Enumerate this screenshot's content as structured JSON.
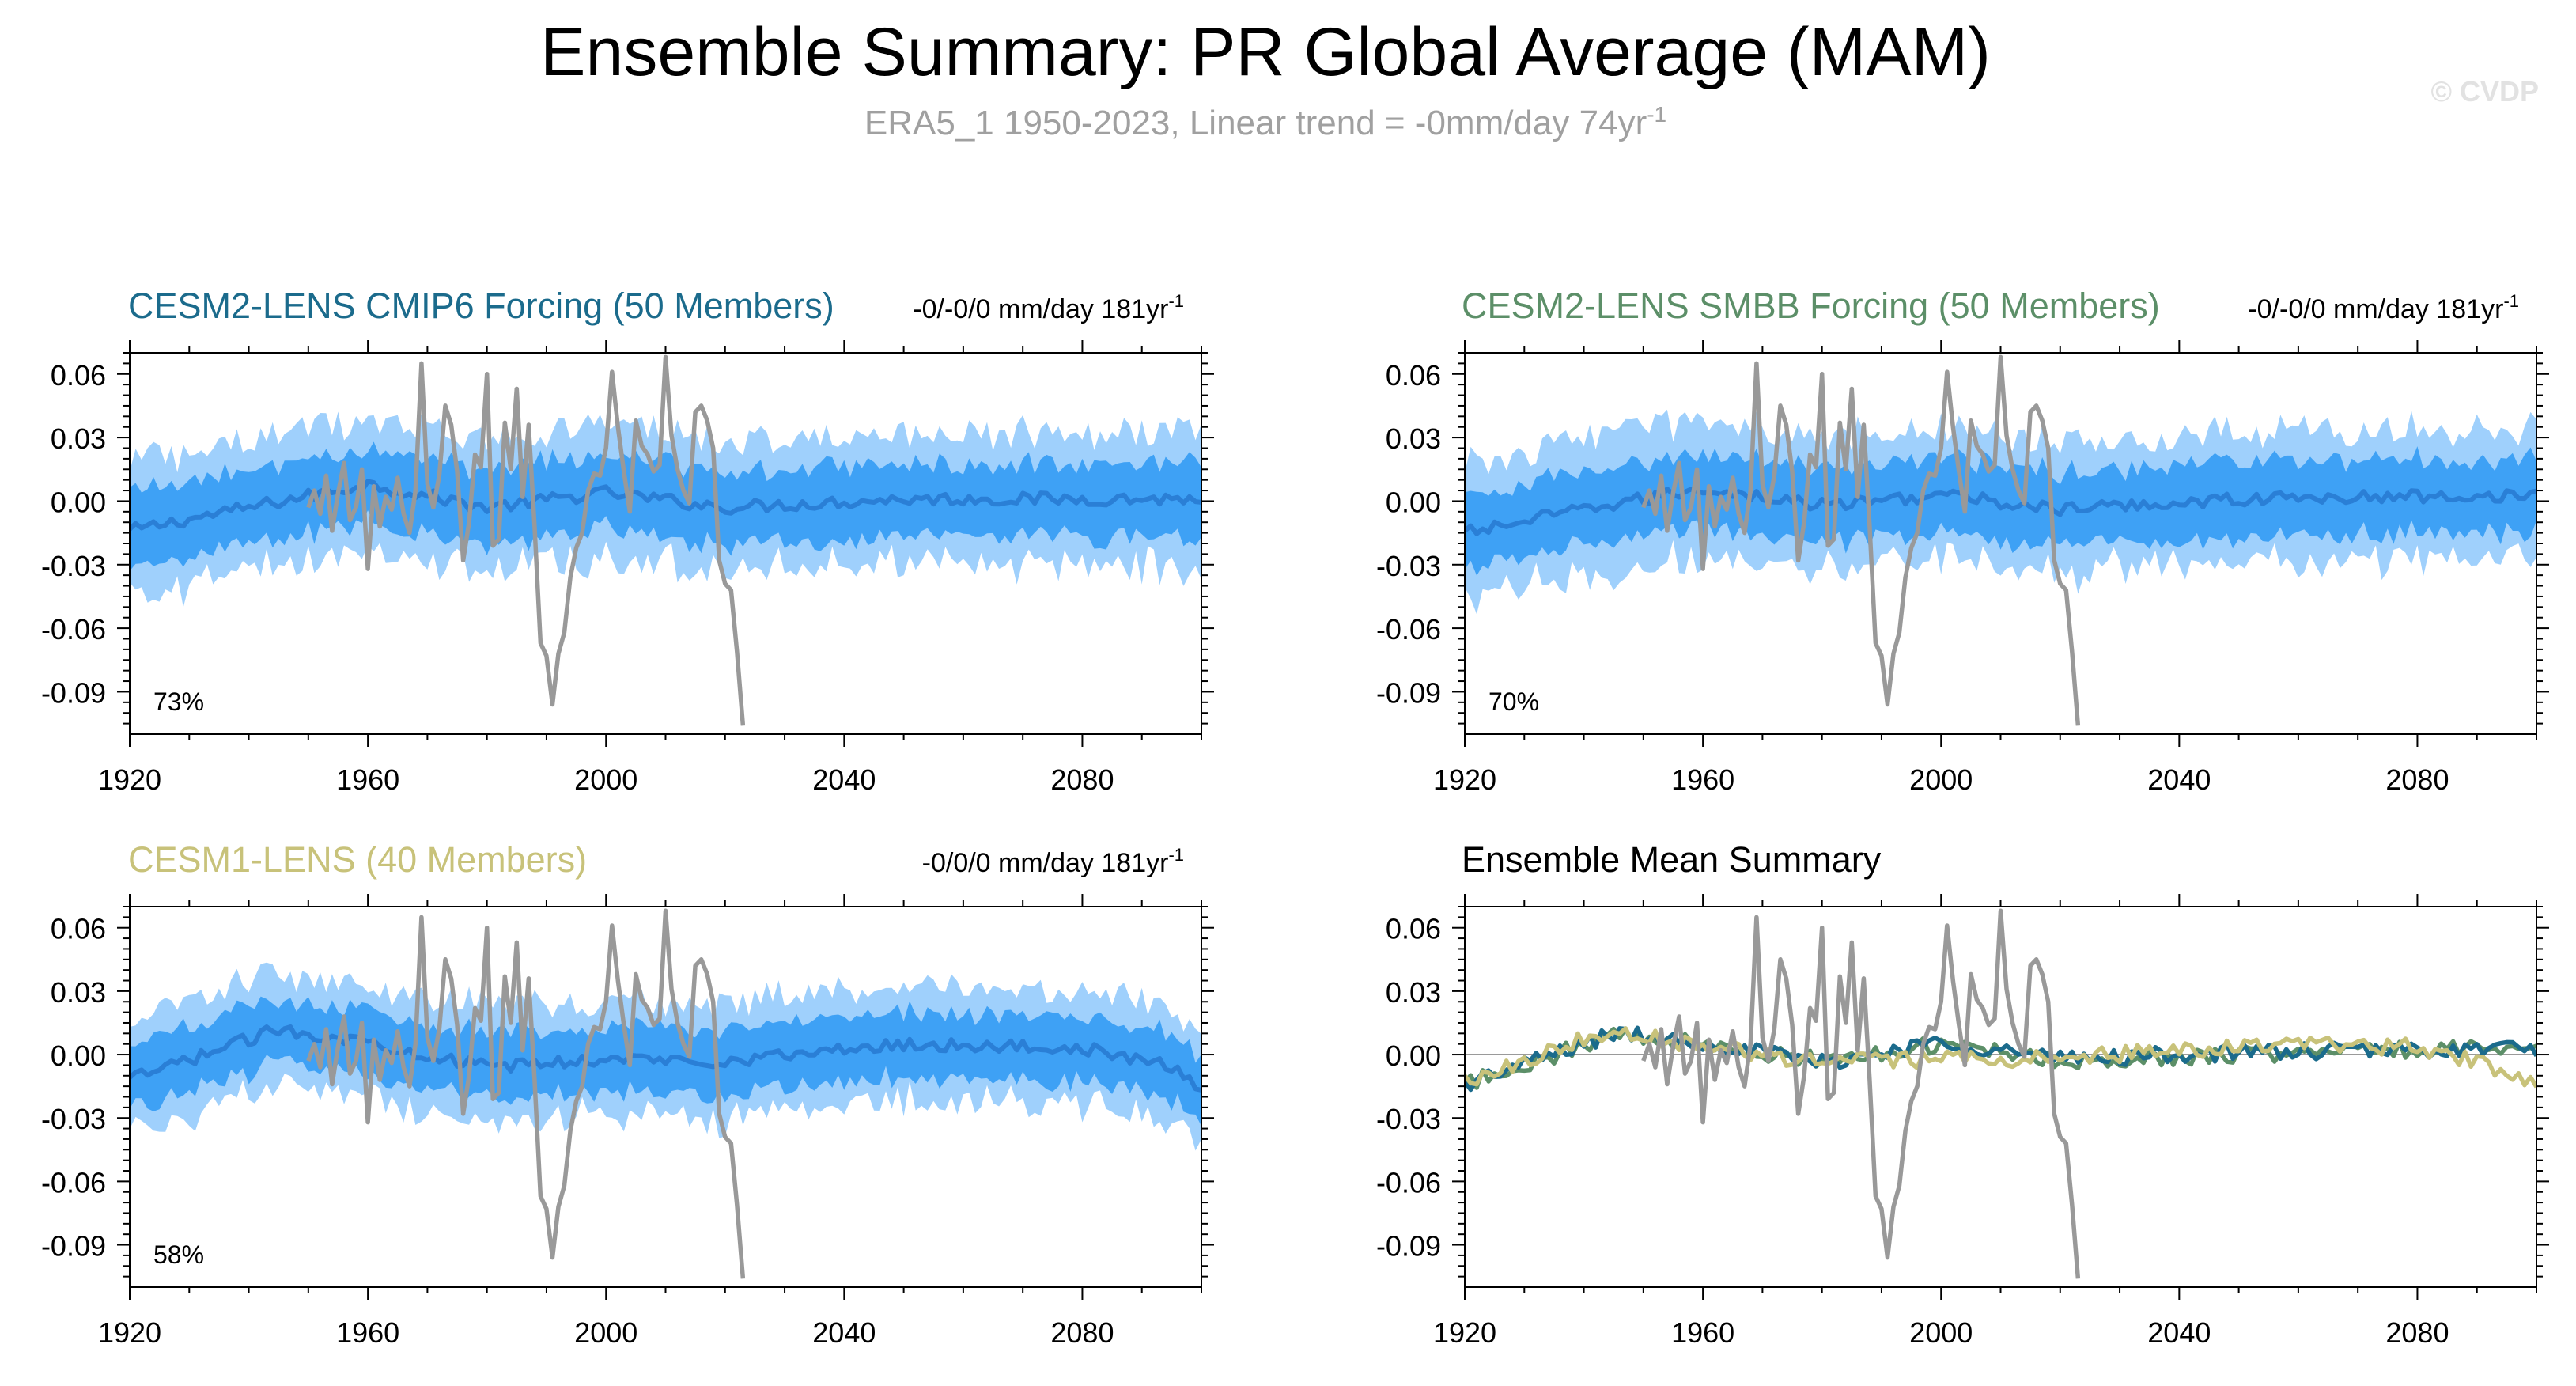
{
  "header": {
    "title": "Ensemble Summary: PR Global Average (MAM)",
    "subtitle": "ERA5_1 1950-2023, Linear trend = -0mm/day 74yr",
    "subtitle_sup": "-1",
    "watermark": "© CVDP"
  },
  "colors": {
    "band_outer": "#9fd0fc",
    "band_inner": "#3ea1f5",
    "ensemble_mean": "#2a7fd6",
    "observations": "#999999",
    "cesm2_cmip6": "#1b6b8c",
    "cesm2_smbb": "#5c8f68",
    "cesm1": "#c8c27a"
  },
  "chart_data": [
    {
      "type": "area",
      "title": "CESM2-LENS CMIP6 Forcing (50 Members)",
      "title_color": "#1b6b8c",
      "trend_label": "-0/-0/0 mm/day 181yr",
      "trend_sup": "-1",
      "percent_label": "73%",
      "xlim": [
        1920,
        2100
      ],
      "ylim": [
        -0.11,
        0.07
      ],
      "x_ticks": [
        1920,
        1960,
        2000,
        2040,
        2080
      ],
      "x_tick_labels": [
        "1920",
        "1960",
        "2000",
        "2040",
        "2080"
      ],
      "y_ticks": [
        0.06,
        0.03,
        0.0,
        -0.03,
        -0.06,
        -0.09
      ],
      "y_tick_labels": [
        "0.06",
        "0.03",
        "0.00",
        "-0.03",
        "-0.06",
        "-0.09"
      ],
      "series": [
        {
          "role": "ensemble_mean",
          "x_start": 1920,
          "x_end": 2100,
          "knots": [
            [
              1920,
              -0.014
            ],
            [
              1940,
              -0.003
            ],
            [
              1960,
              0.008
            ],
            [
              1980,
              -0.003
            ],
            [
              2000,
              0.004
            ],
            [
              2020,
              -0.003
            ],
            [
              2050,
              0.001
            ],
            [
              2100,
              0.001
            ]
          ]
        },
        {
          "role": "band_inner_halfwidth",
          "value": 0.017
        },
        {
          "role": "band_outer_halfwidth",
          "value": 0.031
        },
        {
          "role": "observations",
          "x_start": 1950,
          "x_end": 2023
        }
      ]
    },
    {
      "type": "area",
      "title": "CESM2-LENS SMBB Forcing (50 Members)",
      "title_color": "#5c8f68",
      "trend_label": "-0/-0/0 mm/day 181yr",
      "trend_sup": "-1",
      "percent_label": "70%",
      "xlim": [
        1920,
        2100
      ],
      "ylim": [
        -0.11,
        0.07
      ],
      "x_ticks": [
        1920,
        1960,
        2000,
        2040,
        2080
      ],
      "x_tick_labels": [
        "1920",
        "1960",
        "2000",
        "2040",
        "2080"
      ],
      "y_ticks": [
        0.06,
        0.03,
        0.0,
        -0.03,
        -0.06,
        -0.09
      ],
      "y_tick_labels": [
        "0.06",
        "0.03",
        "0.00",
        "-0.03",
        "-0.06",
        "-0.09"
      ],
      "series": [
        {
          "role": "ensemble_mean",
          "x_start": 1920,
          "x_end": 2100,
          "knots": [
            [
              1920,
              -0.015
            ],
            [
              1940,
              -0.004
            ],
            [
              1960,
              0.006
            ],
            [
              1980,
              -0.002
            ],
            [
              2000,
              0.003
            ],
            [
              2020,
              -0.004
            ],
            [
              2050,
              0.001
            ],
            [
              2100,
              0.003
            ]
          ]
        },
        {
          "role": "band_inner_halfwidth",
          "value": 0.017
        },
        {
          "role": "band_outer_halfwidth",
          "value": 0.031
        },
        {
          "role": "observations",
          "x_start": 1950,
          "x_end": 2023
        }
      ]
    },
    {
      "type": "area",
      "title": "CESM1-LENS (40 Members)",
      "title_color": "#c8c27a",
      "trend_label": "-0/0/0 mm/day 181yr",
      "trend_sup": "-1",
      "percent_label": "58%",
      "xlim": [
        1920,
        2100
      ],
      "ylim": [
        -0.11,
        0.07
      ],
      "x_ticks": [
        1920,
        1960,
        2000,
        2040,
        2080
      ],
      "x_tick_labels": [
        "1920",
        "1960",
        "2000",
        "2040",
        "2080"
      ],
      "y_ticks": [
        0.06,
        0.03,
        0.0,
        -0.03,
        -0.06,
        -0.09
      ],
      "y_tick_labels": [
        "0.06",
        "0.03",
        "0.00",
        "-0.03",
        "-0.06",
        "-0.09"
      ],
      "series": [
        {
          "role": "ensemble_mean",
          "x_start": 1920,
          "x_end": 2100,
          "knots": [
            [
              1920,
              -0.012
            ],
            [
              1945,
              0.012
            ],
            [
              1960,
              0.006
            ],
            [
              1980,
              -0.006
            ],
            [
              2000,
              -0.002
            ],
            [
              2020,
              -0.003
            ],
            [
              2050,
              0.005
            ],
            [
              2080,
              0.003
            ],
            [
              2095,
              -0.006
            ],
            [
              2100,
              -0.016
            ]
          ]
        },
        {
          "role": "band_inner_halfwidth",
          "value": 0.015
        },
        {
          "role": "band_outer_halfwidth",
          "value": 0.027
        },
        {
          "role": "observations",
          "x_start": 1950,
          "x_end": 2023
        }
      ]
    },
    {
      "type": "line",
      "title": "Ensemble Mean Summary",
      "title_color": "#000000",
      "xlim": [
        1920,
        2100
      ],
      "ylim": [
        -0.11,
        0.07
      ],
      "x_ticks": [
        1920,
        1960,
        2000,
        2040,
        2080
      ],
      "x_tick_labels": [
        "1920",
        "1960",
        "2000",
        "2040",
        "2080"
      ],
      "y_ticks": [
        0.06,
        0.03,
        0.0,
        -0.03,
        -0.06,
        -0.09
      ],
      "y_tick_labels": [
        "0.06",
        "0.03",
        "0.00",
        "-0.03",
        "-0.06",
        "-0.09"
      ],
      "series": [
        {
          "role": "cesm2_cmip6_mean",
          "x_start": 1920,
          "x_end": 2100,
          "knots": [
            [
              1920,
              -0.014
            ],
            [
              1945,
              0.01
            ],
            [
              1960,
              0.006
            ],
            [
              1980,
              -0.004
            ],
            [
              2000,
              0.006
            ],
            [
              2020,
              -0.002
            ],
            [
              2050,
              0.001
            ],
            [
              2100,
              0.003
            ]
          ]
        },
        {
          "role": "cesm2_smbb_mean",
          "x_start": 1920,
          "x_end": 2100,
          "knots": [
            [
              1920,
              -0.014
            ],
            [
              1945,
              0.009
            ],
            [
              1960,
              0.005
            ],
            [
              1980,
              -0.003
            ],
            [
              2000,
              0.005
            ],
            [
              2020,
              -0.003
            ],
            [
              2050,
              0.0
            ],
            [
              2100,
              0.004
            ]
          ]
        },
        {
          "role": "cesm1_mean",
          "x_start": 1920,
          "x_end": 2100,
          "knots": [
            [
              1920,
              -0.012
            ],
            [
              1945,
              0.012
            ],
            [
              1960,
              0.004
            ],
            [
              1980,
              -0.004
            ],
            [
              2000,
              -0.002
            ],
            [
              2020,
              -0.002
            ],
            [
              2050,
              0.004
            ],
            [
              2080,
              0.004
            ],
            [
              2095,
              -0.008
            ],
            [
              2100,
              -0.016
            ]
          ]
        },
        {
          "role": "observations",
          "x_start": 1950,
          "x_end": 2023
        }
      ]
    }
  ],
  "observations": {
    "label": "ERA5_1",
    "years": [
      1950,
      2023
    ],
    "values": [
      -0.003,
      0.005,
      -0.006,
      0.012,
      -0.014,
      0.004,
      0.018,
      -0.009,
      -0.003,
      0.015,
      -0.032,
      0.007,
      -0.012,
      0.002,
      -0.004,
      0.011,
      -0.006,
      -0.015,
      0.005,
      0.065,
      0.008,
      -0.003,
      0.012,
      0.045,
      0.036,
      0.014,
      -0.028,
      -0.01,
      0.022,
      0.016,
      0.06,
      -0.021,
      -0.018,
      0.037,
      0.015,
      0.053,
      0.002,
      0.036,
      -0.012,
      -0.067,
      -0.073,
      -0.096,
      -0.072,
      -0.062,
      -0.036,
      -0.022,
      -0.015,
      0.005,
      0.013,
      0.012,
      0.025,
      0.061,
      0.035,
      0.014,
      -0.005,
      0.038,
      0.026,
      0.022,
      0.014,
      0.017,
      0.068,
      0.031,
      0.015,
      0.005,
      -0.001,
      0.042,
      0.045,
      0.038,
      0.025,
      -0.028,
      -0.039,
      -0.042,
      -0.071,
      -0.106
    ]
  }
}
